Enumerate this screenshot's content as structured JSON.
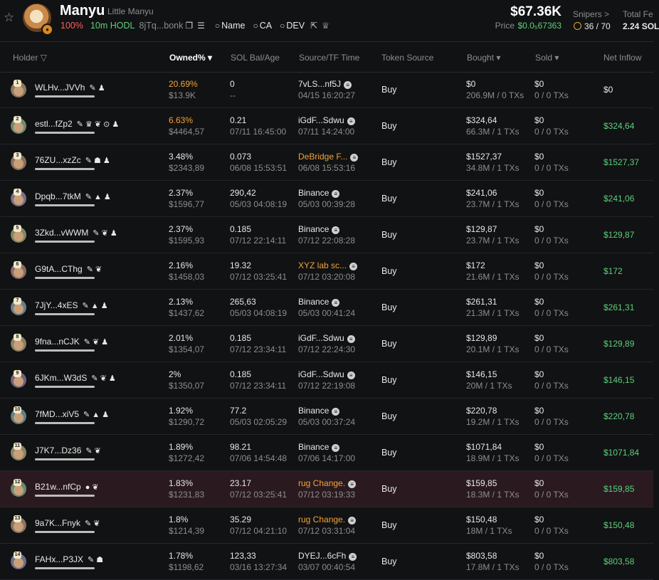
{
  "header": {
    "token_name": "Manyu",
    "token_subtitle": "Little Manyu",
    "holder_pct": "100%",
    "hodl": "10m HODL",
    "address": "8jTq...bonk",
    "name_btn": "Name",
    "ca_btn": "CA",
    "dev_btn": "DEV",
    "market_cap": "$67.36K",
    "price_label": "Price",
    "price_value": "$0.0₅67363",
    "snipers_label": "Snipers >",
    "snipers_value": "36 / 70",
    "total_fee_label": "Total Fe",
    "total_fee_value": "2.24 SOL"
  },
  "columns": {
    "holder": "Holder",
    "owned": "Owned%",
    "sol_bal": "SOL Bal/Age",
    "source": "Source/TF Time",
    "token_source": "Token Source",
    "bought": "Bought",
    "sold": "Sold",
    "net_inflow": "Net Inflow"
  },
  "colors": {
    "positive": "#5bd07d",
    "warning": "#f2a33a",
    "negative": "#ff5d5d",
    "highlight_row": "#2a1a20"
  },
  "rows": [
    {
      "rank": "1",
      "name": "WLHv...JVVh",
      "tags": "✎ ♟",
      "owned": "20.69%",
      "owned_usd": "$13.9K",
      "sol": "0",
      "age": "--",
      "src": "7vLS...nf5J",
      "src_time": "04/15 16:20:27",
      "token_src": "Buy",
      "bought": "$0",
      "bought_sub": "206.9M / 0 TXs",
      "sold": "$0",
      "sold_sub": "0 / 0 TXs",
      "inflow": "$0"
    },
    {
      "rank": "2",
      "name": "estl...fZp2",
      "tags": "✎ ♛ ❦ ⊙ ♟",
      "owned": "6.63%",
      "owned_usd": "$4464,57",
      "sol": "0.21",
      "age": "07/11 16:45:00",
      "src": "iGdF...Sdwu",
      "src_time": "07/11 14:24:00",
      "token_src": "Buy",
      "bought": "$324,64",
      "bought_sub": "66.3M / 1 TXs",
      "sold": "$0",
      "sold_sub": "0 / 0 TXs",
      "inflow": "$324,64"
    },
    {
      "rank": "3",
      "name": "76ZU...xzZc",
      "tags": "✎ ☗ ♟",
      "owned": "3.48%",
      "owned_usd": "$2343,89",
      "sol": "0.073",
      "age": "06/08 15:53:51",
      "src": "DeBridge F...",
      "src_time": "06/08 15:53:16",
      "token_src": "Buy",
      "bought": "$1527,37",
      "bought_sub": "34.8M / 1 TXs",
      "sold": "$0",
      "sold_sub": "0 / 0 TXs",
      "inflow": "$1527,37"
    },
    {
      "rank": "4",
      "name": "Dpqb...7tkM",
      "tags": "✎ ▲ ♟",
      "owned": "2.37%",
      "owned_usd": "$1596,77",
      "sol": "290,42",
      "age": "05/03 04:08:19",
      "src": "Binance",
      "src_time": "05/03 00:39:28",
      "token_src": "Buy",
      "bought": "$241,06",
      "bought_sub": "23.7M / 1 TXs",
      "sold": "$0",
      "sold_sub": "0 / 0 TXs",
      "inflow": "$241,06"
    },
    {
      "rank": "5",
      "name": "3Zkd...vWWM",
      "tags": "✎ ❦ ♟",
      "owned": "2.37%",
      "owned_usd": "$1595,93",
      "sol": "0.185",
      "age": "07/12 22:14:11",
      "src": "Binance",
      "src_time": "07/12 22:08:28",
      "token_src": "Buy",
      "bought": "$129,87",
      "bought_sub": "23.7M / 1 TXs",
      "sold": "$0",
      "sold_sub": "0 / 0 TXs",
      "inflow": "$129,87"
    },
    {
      "rank": "6",
      "name": "G9tA...CThg",
      "tags": "✎ ❦",
      "owned": "2.16%",
      "owned_usd": "$1458,03",
      "sol": "19.32",
      "age": "07/12 03:25:41",
      "src": "XYZ lab sc...",
      "src_time": "07/12 03:20:08",
      "token_src": "Buy",
      "bought": "$172",
      "bought_sub": "21.6M / 1 TXs",
      "sold": "$0",
      "sold_sub": "0 / 0 TXs",
      "inflow": "$172"
    },
    {
      "rank": "7",
      "name": "7JjY...4xES",
      "tags": "✎ ▲ ♟",
      "owned": "2.13%",
      "owned_usd": "$1437,62",
      "sol": "265,63",
      "age": "05/03 04:08:19",
      "src": "Binance",
      "src_time": "05/03 00:41:24",
      "token_src": "Buy",
      "bought": "$261,31",
      "bought_sub": "21.3M / 1 TXs",
      "sold": "$0",
      "sold_sub": "0 / 0 TXs",
      "inflow": "$261,31"
    },
    {
      "rank": "8",
      "name": "9fna...nCJK",
      "tags": "✎ ❦ ♟",
      "owned": "2.01%",
      "owned_usd": "$1354,07",
      "sol": "0.185",
      "age": "07/12 23:34:11",
      "src": "iGdF...Sdwu",
      "src_time": "07/12 22:24:30",
      "token_src": "Buy",
      "bought": "$129,89",
      "bought_sub": "20.1M / 1 TXs",
      "sold": "$0",
      "sold_sub": "0 / 0 TXs",
      "inflow": "$129,89"
    },
    {
      "rank": "9",
      "name": "6JKm...W3dS",
      "tags": "✎ ❦ ♟",
      "owned": "2%",
      "owned_usd": "$1350,07",
      "sol": "0.185",
      "age": "07/12 23:34:11",
      "src": "iGdF...Sdwu",
      "src_time": "07/12 22:19:08",
      "token_src": "Buy",
      "bought": "$146,15",
      "bought_sub": "20M / 1 TXs",
      "sold": "$0",
      "sold_sub": "0 / 0 TXs",
      "inflow": "$146,15"
    },
    {
      "rank": "10",
      "name": "7fMD...xiV5",
      "tags": "✎ ▲ ♟",
      "owned": "1.92%",
      "owned_usd": "$1290,72",
      "sol": "77.2",
      "age": "05/03 02:05:29",
      "src": "Binance",
      "src_time": "05/03 00:37:24",
      "token_src": "Buy",
      "bought": "$220,78",
      "bought_sub": "19.2M / 1 TXs",
      "sold": "$0",
      "sold_sub": "0 / 0 TXs",
      "inflow": "$220,78"
    },
    {
      "rank": "11",
      "name": "J7K7...Dz36",
      "tags": "✎ ❦",
      "owned": "1.89%",
      "owned_usd": "$1272,42",
      "sol": "98.21",
      "age": "07/06 14:54:48",
      "src": "Binance",
      "src_time": "07/06 14:17:00",
      "token_src": "Buy",
      "bought": "$1071,84",
      "bought_sub": "18.9M / 1 TXs",
      "sold": "$0",
      "sold_sub": "0 / 0 TXs",
      "inflow": "$1071,84"
    },
    {
      "rank": "12",
      "name": "B21w...nfCp",
      "tags": "● ❦",
      "owned": "1.83%",
      "owned_usd": "$1231,83",
      "sol": "23.17",
      "age": "07/12 03:25:41",
      "src": "rug Change.",
      "src_time": "07/12 03:19:33",
      "token_src": "Buy",
      "bought": "$159,85",
      "bought_sub": "18.3M / 1 TXs",
      "sold": "$0",
      "sold_sub": "0 / 0 TXs",
      "inflow": "$159,85"
    },
    {
      "rank": "13",
      "name": "9a7K...Fnyk",
      "tags": "✎ ❦",
      "owned": "1.8%",
      "owned_usd": "$1214,39",
      "sol": "35.29",
      "age": "07/12 04:21:10",
      "src": "rug Change.",
      "src_time": "07/12 03:31:04",
      "token_src": "Buy",
      "bought": "$150,48",
      "bought_sub": "18M / 1 TXs",
      "sold": "$0",
      "sold_sub": "0 / 0 TXs",
      "inflow": "$150,48"
    },
    {
      "rank": "14",
      "name": "FAHx...P3JX",
      "tags": "✎ ☗",
      "owned": "1.78%",
      "owned_usd": "$1198,62",
      "sol": "123,33",
      "age": "03/16 13:27:34",
      "src": "DYEJ...6cFh",
      "src_time": "03/07 00:40:54",
      "token_src": "Buy",
      "bought": "$803,58",
      "bought_sub": "17.8M / 1 TXs",
      "sold": "$0",
      "sold_sub": "0 / 0 TXs",
      "inflow": "$803,58"
    }
  ]
}
